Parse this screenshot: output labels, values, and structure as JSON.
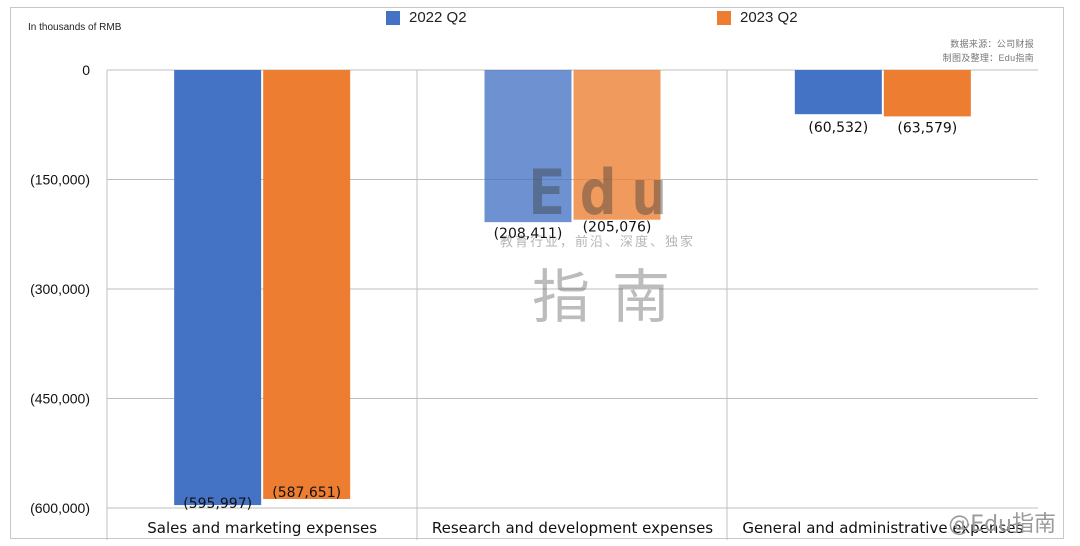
{
  "unit_note": "In thousands of RMB",
  "source_lines": [
    "数据来源：公司财报",
    "制图及整理：Edu指南"
  ],
  "watermark": {
    "edu": "Edu",
    "tagline": "教育行业，前沿、深度、独家",
    "zhinan": "指南",
    "corner": "@Edu指南"
  },
  "colors": {
    "series_2022": "#4472C4",
    "series_2023": "#ED7D31",
    "grid": "#bfbfbf"
  },
  "chart_data": {
    "type": "bar",
    "title": "",
    "xlabel": "",
    "ylabel": "",
    "categories": [
      "Sales and marketing expenses",
      "Research and development expenses",
      "General and administrative expenses"
    ],
    "series": [
      {
        "name": "2022 Q2",
        "values": [
          -595997,
          -208411,
          -60532
        ],
        "labels": [
          "(595,997)",
          "(208,411)",
          "(60,532)"
        ]
      },
      {
        "name": "2023 Q2",
        "values": [
          -587651,
          -205076,
          -63579
        ],
        "labels": [
          "(587,651)",
          "(205,076)",
          "(63,579)"
        ]
      }
    ],
    "ylim": [
      -600000,
      0
    ],
    "yticks": [
      0,
      -150000,
      -300000,
      -450000,
      -600000
    ],
    "ytick_labels": [
      "0",
      "(150,000)",
      "(300,000)",
      "(450,000)",
      "(600,000)"
    ],
    "grid": true,
    "legend_position": "top"
  }
}
